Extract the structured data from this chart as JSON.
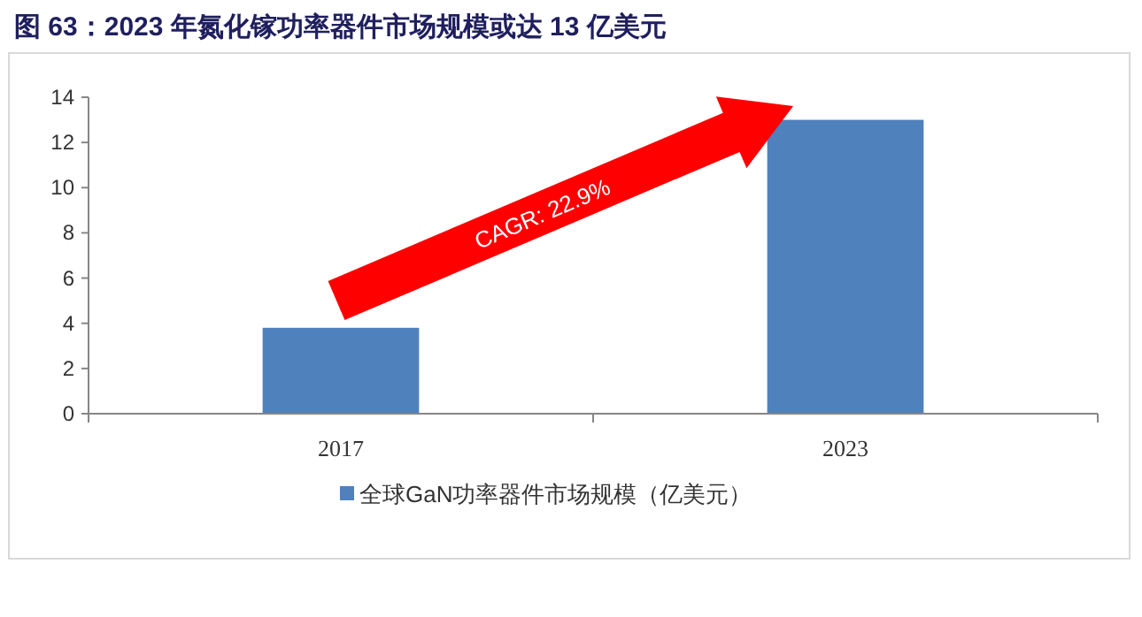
{
  "chart_data": {
    "type": "bar",
    "title": "图 63：2023 年氮化镓功率器件市场规模或达 13 亿美元",
    "categories": [
      "2017",
      "2023"
    ],
    "series": [
      {
        "name": "全球GaN功率器件市场规模（亿美元）",
        "color": "#4f81bd",
        "values": [
          3.8,
          13.0
        ]
      }
    ],
    "ylim": [
      0,
      14
    ],
    "yticks": [
      0,
      2,
      4,
      6,
      8,
      10,
      12,
      14
    ],
    "grid": false,
    "legend": "bottom",
    "annotations": [
      "CAGR: 22.9%"
    ]
  }
}
